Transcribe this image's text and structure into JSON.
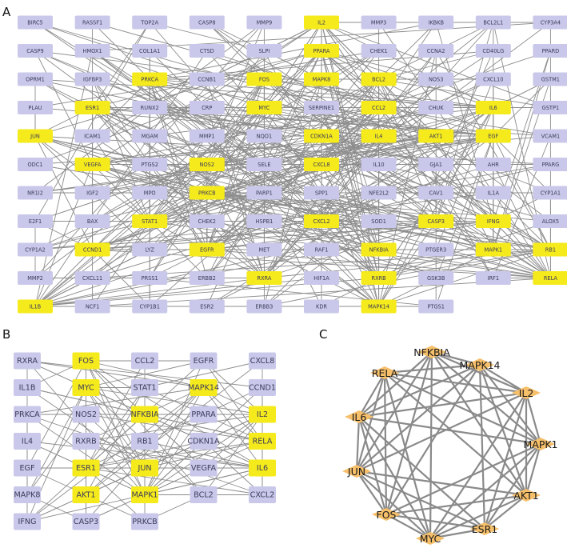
{
  "colors": {
    "normal_node": "#c9c8ea",
    "hub_node": "#f5ea1c",
    "diamond_node": "#f6bf6a",
    "edge": "#8c8c8c"
  },
  "panels": [
    {
      "letter": "A",
      "rows": [
        [
          "BIRC5",
          "RASSF1",
          "TOP2A",
          "CASP8",
          "MMP9",
          "IL2",
          "MMP3",
          "IKBKB",
          "BCL2L1",
          "CYP3A4"
        ],
        [
          "CASP9",
          "HMOX1",
          "COL1A1",
          "CTSD",
          "SLPI",
          "PPARA",
          "CHEK1",
          "CCNA2",
          "CD40LG",
          "PPARD"
        ],
        [
          "OPRM1",
          "IGFBP3",
          "PRKCA",
          "CCNB1",
          "FOS",
          "MAPK8",
          "BCL2",
          "NOS3",
          "CXCL10",
          "GSTM1"
        ],
        [
          "PLAU",
          "ESR1",
          "RUNX2",
          "CRP",
          "MYC",
          "SERPINE1",
          "CCL2",
          "CHUK",
          "IL6",
          "GSTP1"
        ],
        [
          "JUN",
          "ICAM1",
          "MGAM",
          "MMP1",
          "NQO1",
          "CDKN1A",
          "IL4",
          "AKT1",
          "EGF",
          "VCAM1"
        ],
        [
          "ODC1",
          "VEGFA",
          "PTGS2",
          "NOS2",
          "SELE",
          "CXCL8",
          "IL10",
          "GJA1",
          "AHR",
          "PPARG"
        ],
        [
          "NR1I2",
          "IGF2",
          "MPO",
          "PRKCB",
          "PARP1",
          "SPP1",
          "NFE2L2",
          "CAV1",
          "IL1A",
          "CYP1A1"
        ],
        [
          "E2F1",
          "BAX",
          "STAT1",
          "CHEK2",
          "HSPB1",
          "CXCL2",
          "SOD1",
          "CASP3",
          "IFNG",
          "ALOX5"
        ],
        [
          "CYP1A2",
          "CCND1",
          "LYZ",
          "EGFR",
          "MET",
          "RAF1",
          "NFKBIA",
          "PTGER3",
          "MAPK1",
          "RB1"
        ],
        [
          "MMP2",
          "CXCL11",
          "PRSS1",
          "ERBB2",
          "RXRA",
          "HIF1A",
          "RXRB",
          "GSK3B",
          "IRF1",
          "RELA"
        ],
        [
          "IL1B",
          "NCF1",
          "CYP1B1",
          "ESR2",
          "ERBB3",
          "KDR",
          "MAPK14",
          "PTGS1",
          "",
          ""
        ]
      ],
      "highlighted": [
        "IL2",
        "PPARA",
        "PRKCA",
        "FOS",
        "MAPK8",
        "BCL2",
        "ESR1",
        "MYC",
        "CCL2",
        "IL6",
        "JUN",
        "CDKN1A",
        "IL4",
        "AKT1",
        "EGF",
        "VEGFA",
        "NOS2",
        "CXCL8",
        "PRKCB",
        "STAT1",
        "CXCL2",
        "CASP3",
        "IFNG",
        "CCND1",
        "EGFR",
        "NFKBIA",
        "MAPK1",
        "RB1",
        "RXRA",
        "RXRB",
        "RELA",
        "IL1B",
        "MAPK14"
      ]
    },
    {
      "letter": "B",
      "rows": [
        [
          "RXRA",
          "FOS",
          "CCL2",
          "EGFR",
          "CXCL8"
        ],
        [
          "IL1B",
          "MYC",
          "STAT1",
          "MAPK14",
          "CCND1"
        ],
        [
          "PRKCA",
          "NOS2",
          "NFKBIA",
          "PPARA",
          "IL2"
        ],
        [
          "IL4",
          "RXRB",
          "RB1",
          "CDKN1A",
          "RELA"
        ],
        [
          "EGF",
          "ESR1",
          "JUN",
          "VEGFA",
          "IL6"
        ],
        [
          "MAPK8",
          "AKT1",
          "MAPK1",
          "BCL2",
          "CXCL2"
        ],
        [
          "IFNG",
          "CASP3",
          "PRKCB",
          "",
          ""
        ]
      ],
      "highlighted": [
        "FOS",
        "MYC",
        "MAPK14",
        "NFKBIA",
        "IL2",
        "RELA",
        "ESR1",
        "JUN",
        "IL6",
        "AKT1",
        "MAPK1"
      ]
    },
    {
      "letter": "C",
      "nodes": [
        "NFKBIA",
        "MAPK14",
        "IL2",
        "MAPK1",
        "AKT1",
        "ESR1",
        "MYC",
        "FOS",
        "JUN",
        "IL6",
        "RELA"
      ]
    }
  ]
}
